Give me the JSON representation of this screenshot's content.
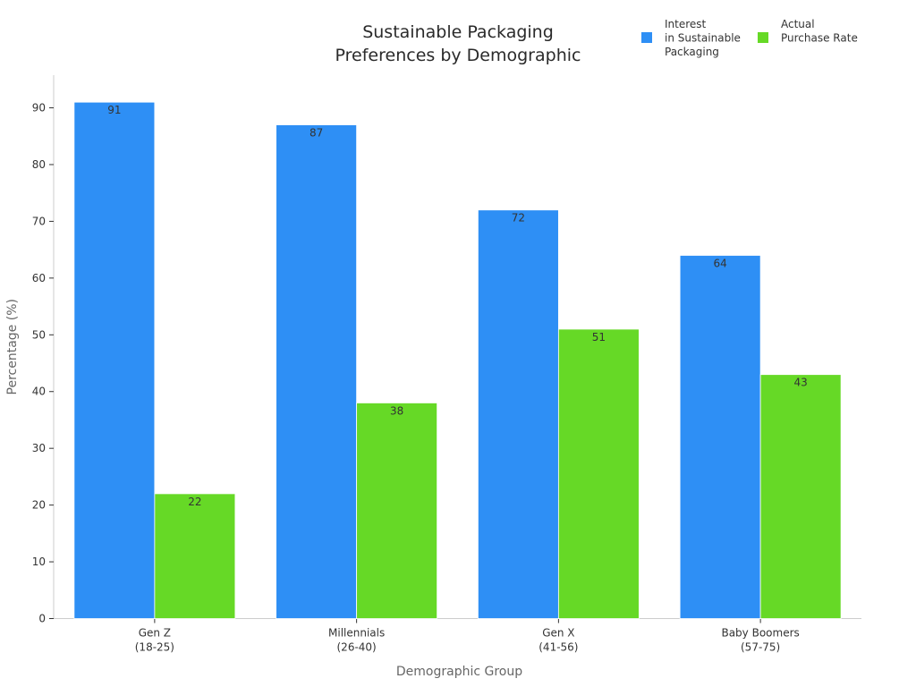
{
  "chart_data": {
    "type": "bar",
    "title_lines": [
      "Sustainable Packaging",
      "Preferences by Demographic"
    ],
    "xlabel": "Demographic Group",
    "ylabel": "Percentage (%)",
    "ylim": [
      0,
      96
    ],
    "yticks": [
      0,
      10,
      20,
      30,
      40,
      50,
      60,
      70,
      80,
      90
    ],
    "grid": false,
    "legend_position": "top-right",
    "categories": [
      [
        "Gen Z",
        "(18-25)"
      ],
      [
        "Millennials",
        "(26-40)"
      ],
      [
        "Gen X",
        "(41-56)"
      ],
      [
        "Baby Boomers",
        "(57-75)"
      ]
    ],
    "series": [
      {
        "name_lines": [
          "Interest",
          "in Sustainable",
          "Packaging"
        ],
        "color": "#2e8ff5",
        "values": [
          91,
          87,
          72,
          64
        ]
      },
      {
        "name_lines": [
          "Actual",
          "Purchase Rate"
        ],
        "color": "#66d926",
        "values": [
          22,
          38,
          51,
          43
        ]
      }
    ]
  }
}
